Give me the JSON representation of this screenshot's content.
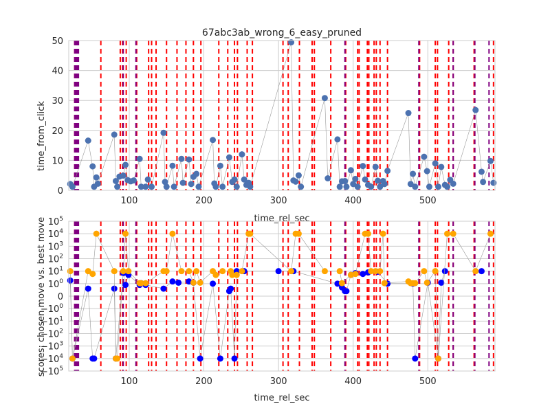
{
  "chart_data": [
    {
      "type": "scatter",
      "title": "67abc3ab_wrong_6_easy_pruned",
      "xlabel": "time_rel_sec",
      "ylabel": "time_from_click",
      "xlim": [
        19,
        590
      ],
      "ylim": [
        0,
        50
      ],
      "xticks": [
        100,
        200,
        300,
        400,
        500
      ],
      "yticks": [
        0,
        10,
        20,
        30,
        40,
        50
      ],
      "grid": true,
      "colors": {
        "point": "#4c72b0",
        "line": "#999999",
        "red_marker": "#ff0000",
        "purple_marker": "#800080"
      },
      "points": [
        [
          21,
          2.1
        ],
        [
          24,
          1.2
        ],
        [
          45,
          16.6
        ],
        [
          51,
          8
        ],
        [
          53,
          1.2
        ],
        [
          56,
          4.3
        ],
        [
          58,
          2.2
        ],
        [
          80,
          18.6
        ],
        [
          82,
          3.1
        ],
        [
          84,
          1.2
        ],
        [
          87,
          4.6
        ],
        [
          92,
          4.9
        ],
        [
          95,
          8.5
        ],
        [
          98,
          3.4
        ],
        [
          102,
          3
        ],
        [
          106,
          3.3
        ],
        [
          114,
          10.5
        ],
        [
          116,
          1.2
        ],
        [
          122,
          1.2
        ],
        [
          125,
          3.6
        ],
        [
          130,
          1.2
        ],
        [
          146,
          19.2
        ],
        [
          148,
          2.8
        ],
        [
          150,
          1.2
        ],
        [
          158,
          8.2
        ],
        [
          160,
          1.2
        ],
        [
          170,
          10.5
        ],
        [
          172,
          2.5
        ],
        [
          180,
          10.3
        ],
        [
          183,
          2.1
        ],
        [
          186,
          4.5
        ],
        [
          190,
          5.5
        ],
        [
          193,
          1.2
        ],
        [
          212,
          16.8
        ],
        [
          214,
          2.3
        ],
        [
          216,
          1.2
        ],
        [
          222,
          8.2
        ],
        [
          225,
          1.2
        ],
        [
          234,
          11
        ],
        [
          238,
          2.8
        ],
        [
          241,
          3.6
        ],
        [
          244,
          1.2
        ],
        [
          251,
          12
        ],
        [
          254,
          3.6
        ],
        [
          257,
          1.8
        ],
        [
          260,
          2.5
        ],
        [
          262,
          1.2
        ],
        [
          317,
          49.4
        ],
        [
          320,
          3.3
        ],
        [
          323,
          2.9
        ],
        [
          327,
          5
        ],
        [
          330,
          1.2
        ],
        [
          362,
          30.8
        ],
        [
          366,
          4
        ],
        [
          379,
          17
        ],
        [
          382,
          1.2
        ],
        [
          385,
          3
        ],
        [
          389,
          3.1
        ],
        [
          391,
          1.2
        ],
        [
          397,
          6.7
        ],
        [
          400,
          2.1
        ],
        [
          403,
          3.8
        ],
        [
          406,
          1.2
        ],
        [
          413,
          8.1
        ],
        [
          416,
          3.6
        ],
        [
          420,
          1.8
        ],
        [
          424,
          1.2
        ],
        [
          430,
          7.8
        ],
        [
          433,
          3.2
        ],
        [
          436,
          1.2
        ],
        [
          440,
          3.1
        ],
        [
          442,
          2.1
        ],
        [
          446,
          6.5
        ],
        [
          474,
          25.8
        ],
        [
          477,
          2.1
        ],
        [
          480,
          5.5
        ],
        [
          483,
          1.2
        ],
        [
          495,
          11.2
        ],
        [
          499,
          6.4
        ],
        [
          502,
          1.2
        ],
        [
          510,
          9
        ],
        [
          514,
          1.2
        ],
        [
          518,
          7.8
        ],
        [
          523,
          1.8
        ],
        [
          526,
          1.2
        ],
        [
          530,
          3.5
        ],
        [
          534,
          2.2
        ],
        [
          564,
          26.8
        ],
        [
          572,
          6.2
        ],
        [
          574,
          2.8
        ],
        [
          584,
          9.8
        ],
        [
          588,
          2.5
        ]
      ],
      "red_markers": [
        27,
        29,
        31,
        62,
        88,
        91,
        96,
        110,
        126,
        130,
        136,
        150,
        164,
        176,
        186,
        196,
        220,
        232,
        241,
        245,
        258,
        265,
        306,
        313,
        328,
        345,
        348,
        370,
        390,
        406,
        408,
        419,
        421,
        428,
        431,
        436,
        446,
        489,
        510,
        513,
        528,
        534,
        562,
        588
      ],
      "purple_markers": [
        27,
        28,
        29,
        30,
        31,
        32,
        92,
        109,
        389,
        488,
        534,
        563,
        582
      ]
    },
    {
      "type": "scatter",
      "xlabel": "time_rel_sec",
      "ylabel": "scores: chosen move vs. best move",
      "xlim": [
        19,
        590
      ],
      "yscale": "symlog",
      "ytick_labels": [
        "10^5",
        "10^4",
        "10^3",
        "10^2",
        "10^1",
        "10^0",
        "0",
        "-10^0",
        "-10^1",
        "-10^2",
        "-10^3",
        "-10^4",
        "-10^5"
      ],
      "xticks": [
        100,
        200,
        300,
        400,
        500
      ],
      "grid": true,
      "colors": {
        "chosen": "#0000ff",
        "best": "#ffa500",
        "line": "#999999",
        "red_marker": "#ff0000",
        "purple_marker": "#800080"
      },
      "series": [
        {
          "name": "",
          "color": "chosen",
          "points": [
            [
              21,
              1.8
            ],
            [
              24,
              -10000
            ],
            [
              45,
              0.6
            ],
            [
              51,
              -10000
            ],
            [
              53,
              -10000
            ],
            [
              80,
              0.6
            ],
            [
              82,
              -10000
            ],
            [
              92,
              7
            ],
            [
              95,
              0.9
            ],
            [
              99,
              5
            ],
            [
              114,
              0.9
            ],
            [
              116,
              1.1
            ],
            [
              122,
              0.9
            ],
            [
              146,
              0.6
            ],
            [
              158,
              1.5
            ],
            [
              166,
              1.2
            ],
            [
              180,
              1.5
            ],
            [
              186,
              1.2
            ],
            [
              195,
              -10000
            ],
            [
              212,
              1
            ],
            [
              222,
              -10000
            ],
            [
              234,
              0.4
            ],
            [
              236,
              0.6
            ],
            [
              241,
              -10000
            ],
            [
              244,
              10
            ],
            [
              254,
              10
            ],
            [
              300,
              10
            ],
            [
              320,
              10
            ],
            [
              379,
              1
            ],
            [
              385,
              0.7
            ],
            [
              389,
              0.4
            ],
            [
              391,
              0.4
            ],
            [
              397,
              5
            ],
            [
              403,
              7
            ],
            [
              413,
              6
            ],
            [
              420,
              8
            ],
            [
              433,
              9
            ],
            [
              446,
              1
            ],
            [
              480,
              1
            ],
            [
              483,
              -10000
            ],
            [
              500,
              1.2
            ],
            [
              514,
              -10000
            ],
            [
              518,
              1.2
            ],
            [
              523,
              10
            ],
            [
              572,
              10
            ]
          ]
        },
        {
          "name": "",
          "color": "best",
          "points": [
            [
              21,
              10
            ],
            [
              24,
              -10000
            ],
            [
              45,
              10
            ],
            [
              51,
              6
            ],
            [
              56,
              10000
            ],
            [
              80,
              10
            ],
            [
              82,
              -10000
            ],
            [
              84,
              -10000
            ],
            [
              92,
              10
            ],
            [
              95,
              10000
            ],
            [
              99,
              10
            ],
            [
              114,
              1.1
            ],
            [
              116,
              1.1
            ],
            [
              122,
              1.1
            ],
            [
              146,
              10
            ],
            [
              150,
              10
            ],
            [
              158,
              10000
            ],
            [
              170,
              10
            ],
            [
              180,
              10
            ],
            [
              186,
              1.2
            ],
            [
              190,
              10
            ],
            [
              195,
              1.2
            ],
            [
              212,
              10
            ],
            [
              216,
              5
            ],
            [
              225,
              10
            ],
            [
              236,
              10
            ],
            [
              238,
              5
            ],
            [
              244,
              5
            ],
            [
              251,
              10
            ],
            [
              260,
              10000
            ],
            [
              262,
              10000
            ],
            [
              317,
              10
            ],
            [
              323,
              10000
            ],
            [
              327,
              10000
            ],
            [
              362,
              10
            ],
            [
              382,
              10
            ],
            [
              385,
              1.1
            ],
            [
              397,
              5
            ],
            [
              403,
              6
            ],
            [
              416,
              10000
            ],
            [
              420,
              10000
            ],
            [
              424,
              10
            ],
            [
              430,
              10
            ],
            [
              436,
              10
            ],
            [
              440,
              10000
            ],
            [
              442,
              1.1
            ],
            [
              474,
              1.5
            ],
            [
              477,
              1.1
            ],
            [
              480,
              1.1
            ],
            [
              483,
              1.1
            ],
            [
              495,
              10
            ],
            [
              499,
              1.2
            ],
            [
              510,
              10
            ],
            [
              514,
              -10000
            ],
            [
              526,
              10000
            ],
            [
              534,
              10000
            ],
            [
              564,
              10
            ],
            [
              584,
              10000
            ]
          ]
        }
      ],
      "red_markers": [
        27,
        29,
        31,
        62,
        88,
        91,
        96,
        110,
        126,
        130,
        136,
        150,
        164,
        176,
        186,
        196,
        220,
        232,
        241,
        245,
        258,
        265,
        306,
        313,
        328,
        345,
        348,
        370,
        390,
        406,
        408,
        419,
        421,
        428,
        431,
        436,
        446,
        489,
        510,
        513,
        528,
        534,
        562,
        588
      ],
      "purple_markers": [
        27,
        28,
        29,
        30,
        31,
        32,
        92,
        109,
        389,
        488,
        534,
        563,
        582
      ]
    }
  ]
}
